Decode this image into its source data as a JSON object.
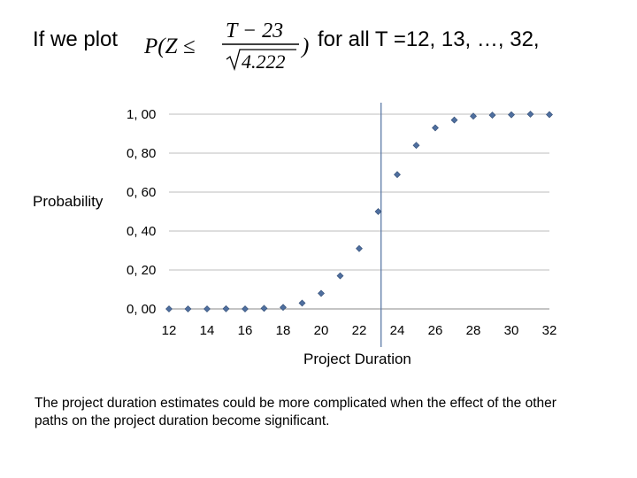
{
  "heading": {
    "prefix": "If we plot",
    "formula_lhs": "P(Z ≤",
    "formula_num": "T − 23",
    "formula_den": "4.222",
    "formula_close": ")",
    "suffix": "for all T =12, 13, …, 32,"
  },
  "chart_data": {
    "type": "scatter",
    "xlabel": "Project Duration",
    "ylabel": "Probability",
    "xlim": [
      12,
      32
    ],
    "ylim": [
      0,
      1
    ],
    "x_ticks": [
      "12",
      "14",
      "16",
      "18",
      "20",
      "22",
      "24",
      "26",
      "28",
      "30",
      "32"
    ],
    "y_ticks": [
      "0, 00",
      "0, 20",
      "0, 40",
      "0, 60",
      "0, 80",
      "1, 00"
    ],
    "vertical_line_x": 23.15,
    "marker_color": "#4f6f9f",
    "points": [
      {
        "x": 12,
        "y": 0.0
      },
      {
        "x": 13,
        "y": 0.0
      },
      {
        "x": 14,
        "y": 0.0
      },
      {
        "x": 15,
        "y": 0.001
      },
      {
        "x": 16,
        "y": 0.0
      },
      {
        "x": 17,
        "y": 0.003
      },
      {
        "x": 18,
        "y": 0.008
      },
      {
        "x": 19,
        "y": 0.03
      },
      {
        "x": 20,
        "y": 0.08
      },
      {
        "x": 21,
        "y": 0.17
      },
      {
        "x": 22,
        "y": 0.31
      },
      {
        "x": 23,
        "y": 0.5
      },
      {
        "x": 24,
        "y": 0.69
      },
      {
        "x": 25,
        "y": 0.84
      },
      {
        "x": 26,
        "y": 0.93
      },
      {
        "x": 27,
        "y": 0.97
      },
      {
        "x": 28,
        "y": 0.99
      },
      {
        "x": 29,
        "y": 0.995
      },
      {
        "x": 30,
        "y": 0.997
      },
      {
        "x": 31,
        "y": 1.0
      },
      {
        "x": 32,
        "y": 0.998
      }
    ]
  },
  "footer": {
    "text": "The project duration estimates could be more complicated when the effect of the other paths on the project duration become significant."
  }
}
